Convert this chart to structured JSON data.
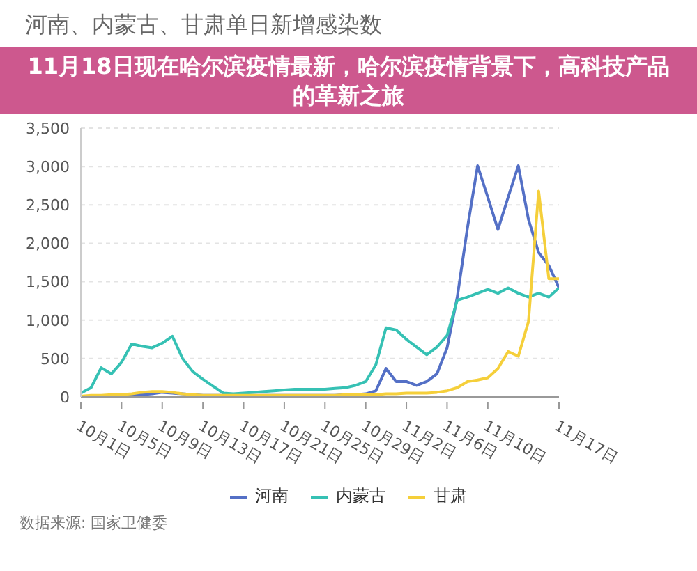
{
  "chart_data": {
    "type": "line",
    "title": "河南、内蒙古、甘肃单日新增感染数",
    "categories": [
      "10月1日",
      null,
      null,
      null,
      "10月5日",
      null,
      null,
      null,
      "10月9日",
      null,
      null,
      null,
      "10月13日",
      null,
      null,
      null,
      "10月17日",
      null,
      null,
      null,
      "10月21日",
      null,
      null,
      null,
      "10月25日",
      null,
      null,
      null,
      "10月29日",
      null,
      null,
      null,
      "11月2日",
      null,
      null,
      null,
      "11月6日",
      null,
      null,
      null,
      "11月10日",
      null,
      null,
      null,
      null,
      null,
      null,
      "11月17日"
    ],
    "series": [
      {
        "name": "河南",
        "color": "#5470c6",
        "values": [
          null,
          null,
          null,
          20,
          20,
          20,
          30,
          40,
          60,
          50,
          40,
          30,
          20,
          20,
          20,
          20,
          20,
          20,
          20,
          20,
          20,
          20,
          20,
          20,
          20,
          20,
          30,
          30,
          40,
          80,
          370,
          200,
          200,
          150,
          200,
          300,
          640,
          1300,
          2200,
          3010,
          2600,
          2180,
          2600,
          3010,
          2310,
          1880,
          1710,
          1420
        ]
      },
      {
        "name": "内蒙古",
        "color": "#36c1b4",
        "values": [
          50,
          120,
          380,
          300,
          450,
          690,
          660,
          640,
          700,
          790,
          500,
          330,
          230,
          140,
          50,
          40,
          50,
          60,
          70,
          80,
          90,
          100,
          100,
          100,
          100,
          110,
          120,
          150,
          200,
          420,
          900,
          870,
          750,
          650,
          550,
          650,
          800,
          1260,
          1300,
          1350,
          1400,
          1350,
          1420,
          1350,
          1300,
          1350,
          1300,
          1420
        ]
      },
      {
        "name": "甘肃",
        "color": "#f5cf3a",
        "values": [
          10,
          20,
          20,
          30,
          30,
          40,
          60,
          70,
          70,
          60,
          40,
          30,
          20,
          20,
          20,
          20,
          20,
          20,
          20,
          20,
          20,
          20,
          20,
          20,
          20,
          20,
          30,
          30,
          30,
          30,
          40,
          40,
          50,
          50,
          50,
          60,
          80,
          120,
          200,
          220,
          250,
          370,
          590,
          530,
          980,
          2680,
          1540,
          1540
        ]
      }
    ],
    "ylim": [
      0,
      3500
    ],
    "yticks": [
      {
        "value": 0,
        "label": "0"
      },
      {
        "value": 500,
        "label": "500"
      },
      {
        "value": 1000,
        "label": "1,000"
      },
      {
        "value": 1500,
        "label": "1,500"
      },
      {
        "value": 2000,
        "label": "2,000"
      },
      {
        "value": 2500,
        "label": "2,500"
      },
      {
        "value": 3000,
        "label": "3,000"
      },
      {
        "value": 3500,
        "label": "3,500"
      }
    ],
    "grid": "y",
    "legend": "bottom",
    "marker": "none",
    "line_style": "solid",
    "annotations": [
      "11月18日现在哈尔滨疫情最新，哈尔滨疫情背景下，高科技产品的革新之旅",
      "数据来源: 国家卫健委"
    ]
  }
}
